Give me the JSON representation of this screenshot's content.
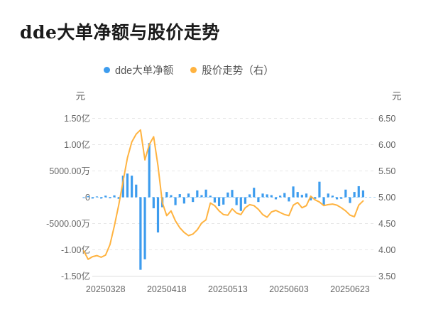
{
  "title": "dde大单净额与股价走势",
  "legend": {
    "items": [
      {
        "label": "dde大单净额",
        "color": "#3D9CEE"
      },
      {
        "label": "股价走势（右）",
        "color": "#FFB340"
      }
    ]
  },
  "chart_data": {
    "type": "bar+line",
    "title": "dde大单净额与股价走势",
    "legend_position": "top-center",
    "background": "#ffffff",
    "x_axis": {
      "labels": [
        "20250328",
        "20250418",
        "20250513",
        "20250603",
        "20250623"
      ],
      "label_indices": [
        5,
        19,
        33,
        47,
        61
      ],
      "num_points": 65
    },
    "left_axis": {
      "unit": "元",
      "tick_labels": [
        "1.50亿",
        "1.00亿",
        "5000.00万",
        "0",
        "-5000.00万",
        "-1.00亿",
        "-1.50亿"
      ],
      "tick_values_wan": [
        15000,
        10000,
        5000,
        0,
        -5000,
        -10000,
        -15000
      ],
      "range_wan": [
        -15000,
        15000
      ]
    },
    "right_axis": {
      "unit": "元",
      "tick_labels": [
        "6.50",
        "6.00",
        "5.50",
        "5.00",
        "4.50",
        "4.00",
        "3.50"
      ],
      "tick_values": [
        6.5,
        6.0,
        5.5,
        5.0,
        4.5,
        4.0,
        3.5
      ],
      "range": [
        3.5,
        6.5
      ]
    },
    "grid": {
      "gridline_color": "#E7E7E7",
      "gridline_dashed": true,
      "zero_line_color": "#A9D6F5",
      "axis_line_color": "#DDDDDD",
      "tick_text_color": "#666666"
    },
    "series": [
      {
        "name": "dde大单净额",
        "type": "bar",
        "axis": "left",
        "unit": "万元",
        "color": "#3D9CEE",
        "values": [
          -150,
          200,
          -250,
          150,
          -250,
          300,
          -200,
          350,
          -300,
          4100,
          4500,
          4100,
          2400,
          -13800,
          -11800,
          10300,
          -2100,
          -6700,
          -1900,
          1000,
          400,
          -1500,
          600,
          -1200,
          700,
          -900,
          1300,
          400,
          1450,
          300,
          -1000,
          -1700,
          -1400,
          900,
          1400,
          -1500,
          -2600,
          -1250,
          550,
          1800,
          -900,
          700,
          550,
          400,
          -400,
          300,
          800,
          -800,
          2050,
          1000,
          450,
          700,
          -600,
          -300,
          2950,
          -1500,
          700,
          300,
          -400,
          -300,
          1450,
          -1100,
          1000,
          2100,
          1300
        ]
      },
      {
        "name": "股价走势（右）",
        "type": "line",
        "axis": "right",
        "unit": "元",
        "color": "#FFB340",
        "values": [
          3.98,
          3.82,
          3.87,
          3.89,
          3.86,
          3.9,
          4.1,
          4.45,
          4.85,
          5.3,
          5.75,
          6.05,
          6.2,
          6.28,
          5.71,
          6.0,
          6.15,
          5.6,
          4.9,
          4.65,
          4.74,
          4.55,
          4.42,
          4.33,
          4.27,
          4.3,
          4.38,
          4.51,
          4.57,
          4.89,
          4.84,
          4.74,
          4.67,
          4.66,
          4.78,
          4.7,
          4.67,
          4.8,
          4.86,
          4.84,
          4.77,
          4.67,
          4.62,
          4.72,
          4.75,
          4.71,
          4.67,
          4.65,
          4.85,
          4.9,
          4.8,
          4.84,
          5.02,
          4.95,
          4.91,
          4.84,
          4.86,
          4.87,
          4.85,
          4.8,
          4.74,
          4.66,
          4.63,
          4.85,
          4.93
        ]
      }
    ]
  }
}
